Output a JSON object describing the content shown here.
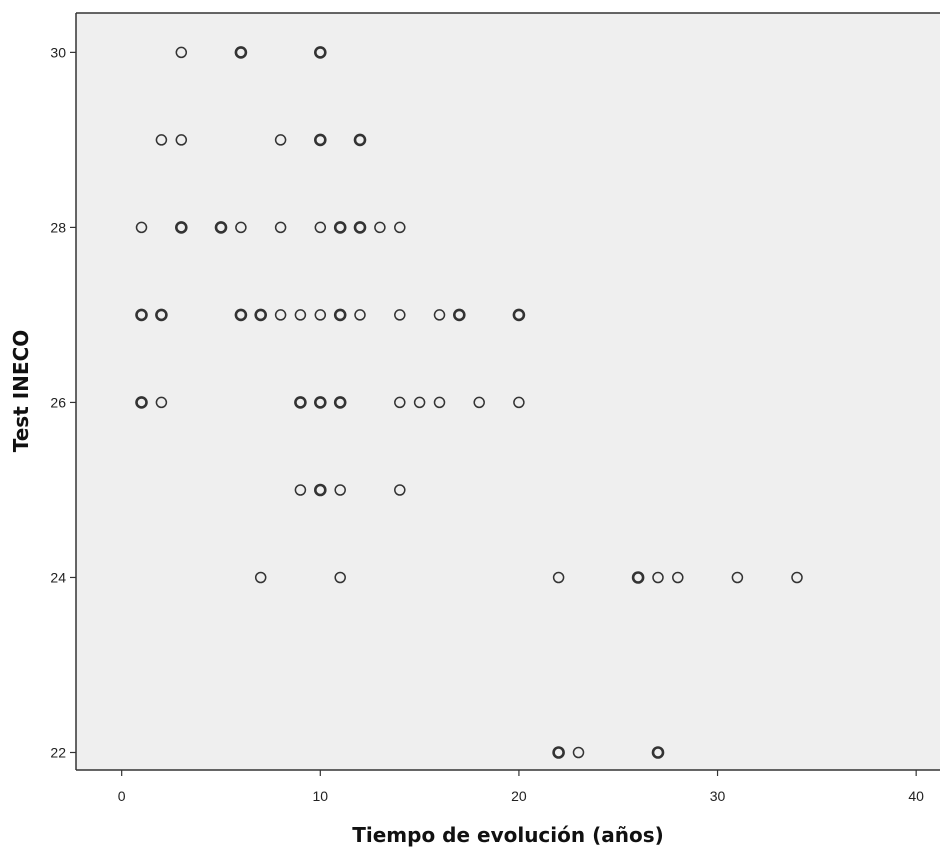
{
  "chart_data": {
    "type": "scatter",
    "title": "",
    "xlabel": "Tiempo de evolución (años)",
    "ylabel": "Test INECO",
    "xlim": [
      -2.3,
      41.2
    ],
    "ylim": [
      21.8,
      30.45
    ],
    "xticks": [
      0,
      10,
      20,
      30,
      40
    ],
    "yticks": [
      22,
      24,
      26,
      28,
      30
    ],
    "grid": false,
    "colors": {
      "plot_bg": "#efefef",
      "marker_stroke": "#333333",
      "axis": "#333333"
    },
    "points": [
      {
        "x": 3,
        "y": 30,
        "n": 1
      },
      {
        "x": 6,
        "y": 30,
        "n": 2
      },
      {
        "x": 10,
        "y": 30,
        "n": 2
      },
      {
        "x": 2,
        "y": 29,
        "n": 1
      },
      {
        "x": 3,
        "y": 29,
        "n": 1
      },
      {
        "x": 8,
        "y": 29,
        "n": 1
      },
      {
        "x": 10,
        "y": 29,
        "n": 2
      },
      {
        "x": 12,
        "y": 29,
        "n": 2
      },
      {
        "x": 1,
        "y": 28,
        "n": 1
      },
      {
        "x": 3,
        "y": 28,
        "n": 2
      },
      {
        "x": 5,
        "y": 28,
        "n": 2
      },
      {
        "x": 6,
        "y": 28,
        "n": 1
      },
      {
        "x": 8,
        "y": 28,
        "n": 1
      },
      {
        "x": 10,
        "y": 28,
        "n": 1
      },
      {
        "x": 11,
        "y": 28,
        "n": 2
      },
      {
        "x": 12,
        "y": 28,
        "n": 2
      },
      {
        "x": 13,
        "y": 28,
        "n": 1
      },
      {
        "x": 14,
        "y": 28,
        "n": 1
      },
      {
        "x": 1,
        "y": 27,
        "n": 2
      },
      {
        "x": 2,
        "y": 27,
        "n": 2
      },
      {
        "x": 6,
        "y": 27,
        "n": 2
      },
      {
        "x": 7,
        "y": 27,
        "n": 2
      },
      {
        "x": 8,
        "y": 27,
        "n": 1
      },
      {
        "x": 9,
        "y": 27,
        "n": 1
      },
      {
        "x": 10,
        "y": 27,
        "n": 1
      },
      {
        "x": 11,
        "y": 27,
        "n": 2
      },
      {
        "x": 12,
        "y": 27,
        "n": 1
      },
      {
        "x": 14,
        "y": 27,
        "n": 1
      },
      {
        "x": 16,
        "y": 27,
        "n": 1
      },
      {
        "x": 17,
        "y": 27,
        "n": 2
      },
      {
        "x": 20,
        "y": 27,
        "n": 2
      },
      {
        "x": 1,
        "y": 26,
        "n": 2
      },
      {
        "x": 2,
        "y": 26,
        "n": 1
      },
      {
        "x": 9,
        "y": 26,
        "n": 2
      },
      {
        "x": 10,
        "y": 26,
        "n": 2
      },
      {
        "x": 11,
        "y": 26,
        "n": 2
      },
      {
        "x": 14,
        "y": 26,
        "n": 1
      },
      {
        "x": 15,
        "y": 26,
        "n": 1
      },
      {
        "x": 16,
        "y": 26,
        "n": 1
      },
      {
        "x": 18,
        "y": 26,
        "n": 1
      },
      {
        "x": 20,
        "y": 26,
        "n": 1
      },
      {
        "x": 9,
        "y": 25,
        "n": 1
      },
      {
        "x": 10,
        "y": 25,
        "n": 2
      },
      {
        "x": 11,
        "y": 25,
        "n": 1
      },
      {
        "x": 14,
        "y": 25,
        "n": 1
      },
      {
        "x": 7,
        "y": 24,
        "n": 1
      },
      {
        "x": 11,
        "y": 24,
        "n": 1
      },
      {
        "x": 22,
        "y": 24,
        "n": 1
      },
      {
        "x": 26,
        "y": 24,
        "n": 2
      },
      {
        "x": 27,
        "y": 24,
        "n": 1
      },
      {
        "x": 28,
        "y": 24,
        "n": 1
      },
      {
        "x": 31,
        "y": 24,
        "n": 1
      },
      {
        "x": 34,
        "y": 24,
        "n": 1
      },
      {
        "x": 22,
        "y": 22,
        "n": 2
      },
      {
        "x": 23,
        "y": 22,
        "n": 1
      },
      {
        "x": 27,
        "y": 22,
        "n": 2
      }
    ]
  }
}
